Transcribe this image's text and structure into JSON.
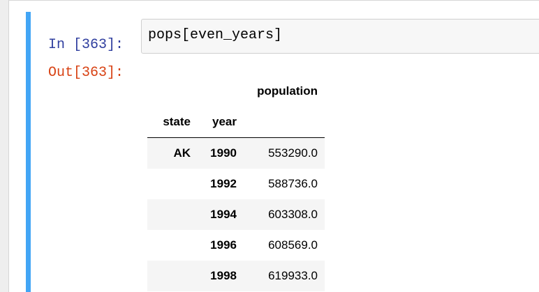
{
  "cell": {
    "in_prompt": "In [363]:",
    "code": "pops[even_years]",
    "out_prompt": "Out[363]:"
  },
  "table": {
    "column_header": "population",
    "index_names": [
      "state",
      "year"
    ],
    "rows": [
      {
        "state": "AK",
        "year": "1990",
        "population": "553290.0"
      },
      {
        "state": "",
        "year": "1992",
        "population": "588736.0"
      },
      {
        "state": "",
        "year": "1994",
        "population": "603308.0"
      },
      {
        "state": "",
        "year": "1996",
        "population": "608569.0"
      },
      {
        "state": "",
        "year": "1998",
        "population": "619933.0"
      }
    ]
  },
  "colors": {
    "cell_selected_bar": "#42a5f5",
    "in_prompt": "#303f9f",
    "out_prompt": "#d84315",
    "input_background": "#f7f7f7"
  }
}
